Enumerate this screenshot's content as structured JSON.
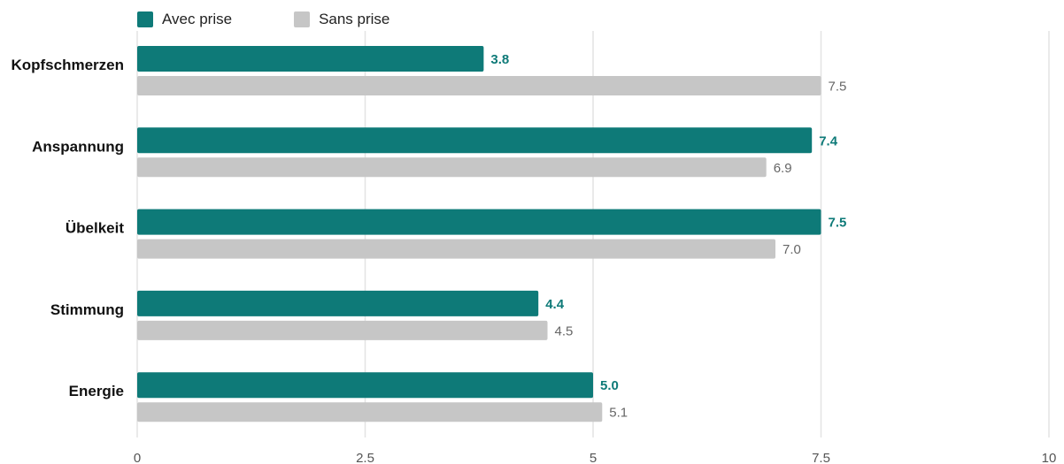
{
  "chart_data": {
    "type": "bar",
    "orientation": "horizontal",
    "categories": [
      "Kopfschmerzen",
      "Anspannung",
      "Übelkeit",
      "Stimmung",
      "Energie"
    ],
    "series": [
      {
        "name": "Avec prise",
        "values": [
          3.8,
          7.4,
          7.5,
          4.4,
          5.0
        ],
        "labels": [
          "3.8",
          "7.4",
          "7.5",
          "4.4",
          "5.0"
        ],
        "color": "#0e7a78"
      },
      {
        "name": "Sans prise",
        "values": [
          7.5,
          6.9,
          7.0,
          4.5,
          5.1
        ],
        "labels": [
          "7.5",
          "6.9",
          "7.0",
          "4.5",
          "5.1"
        ],
        "color": "#c6c6c6"
      }
    ],
    "xlim": [
      0,
      10
    ],
    "xticks": [
      0,
      2.5,
      5,
      7.5,
      10
    ],
    "xtick_labels": [
      "0",
      "2.5",
      "5",
      "7.5",
      "10"
    ],
    "grid": true,
    "legend_position": "top-left"
  }
}
